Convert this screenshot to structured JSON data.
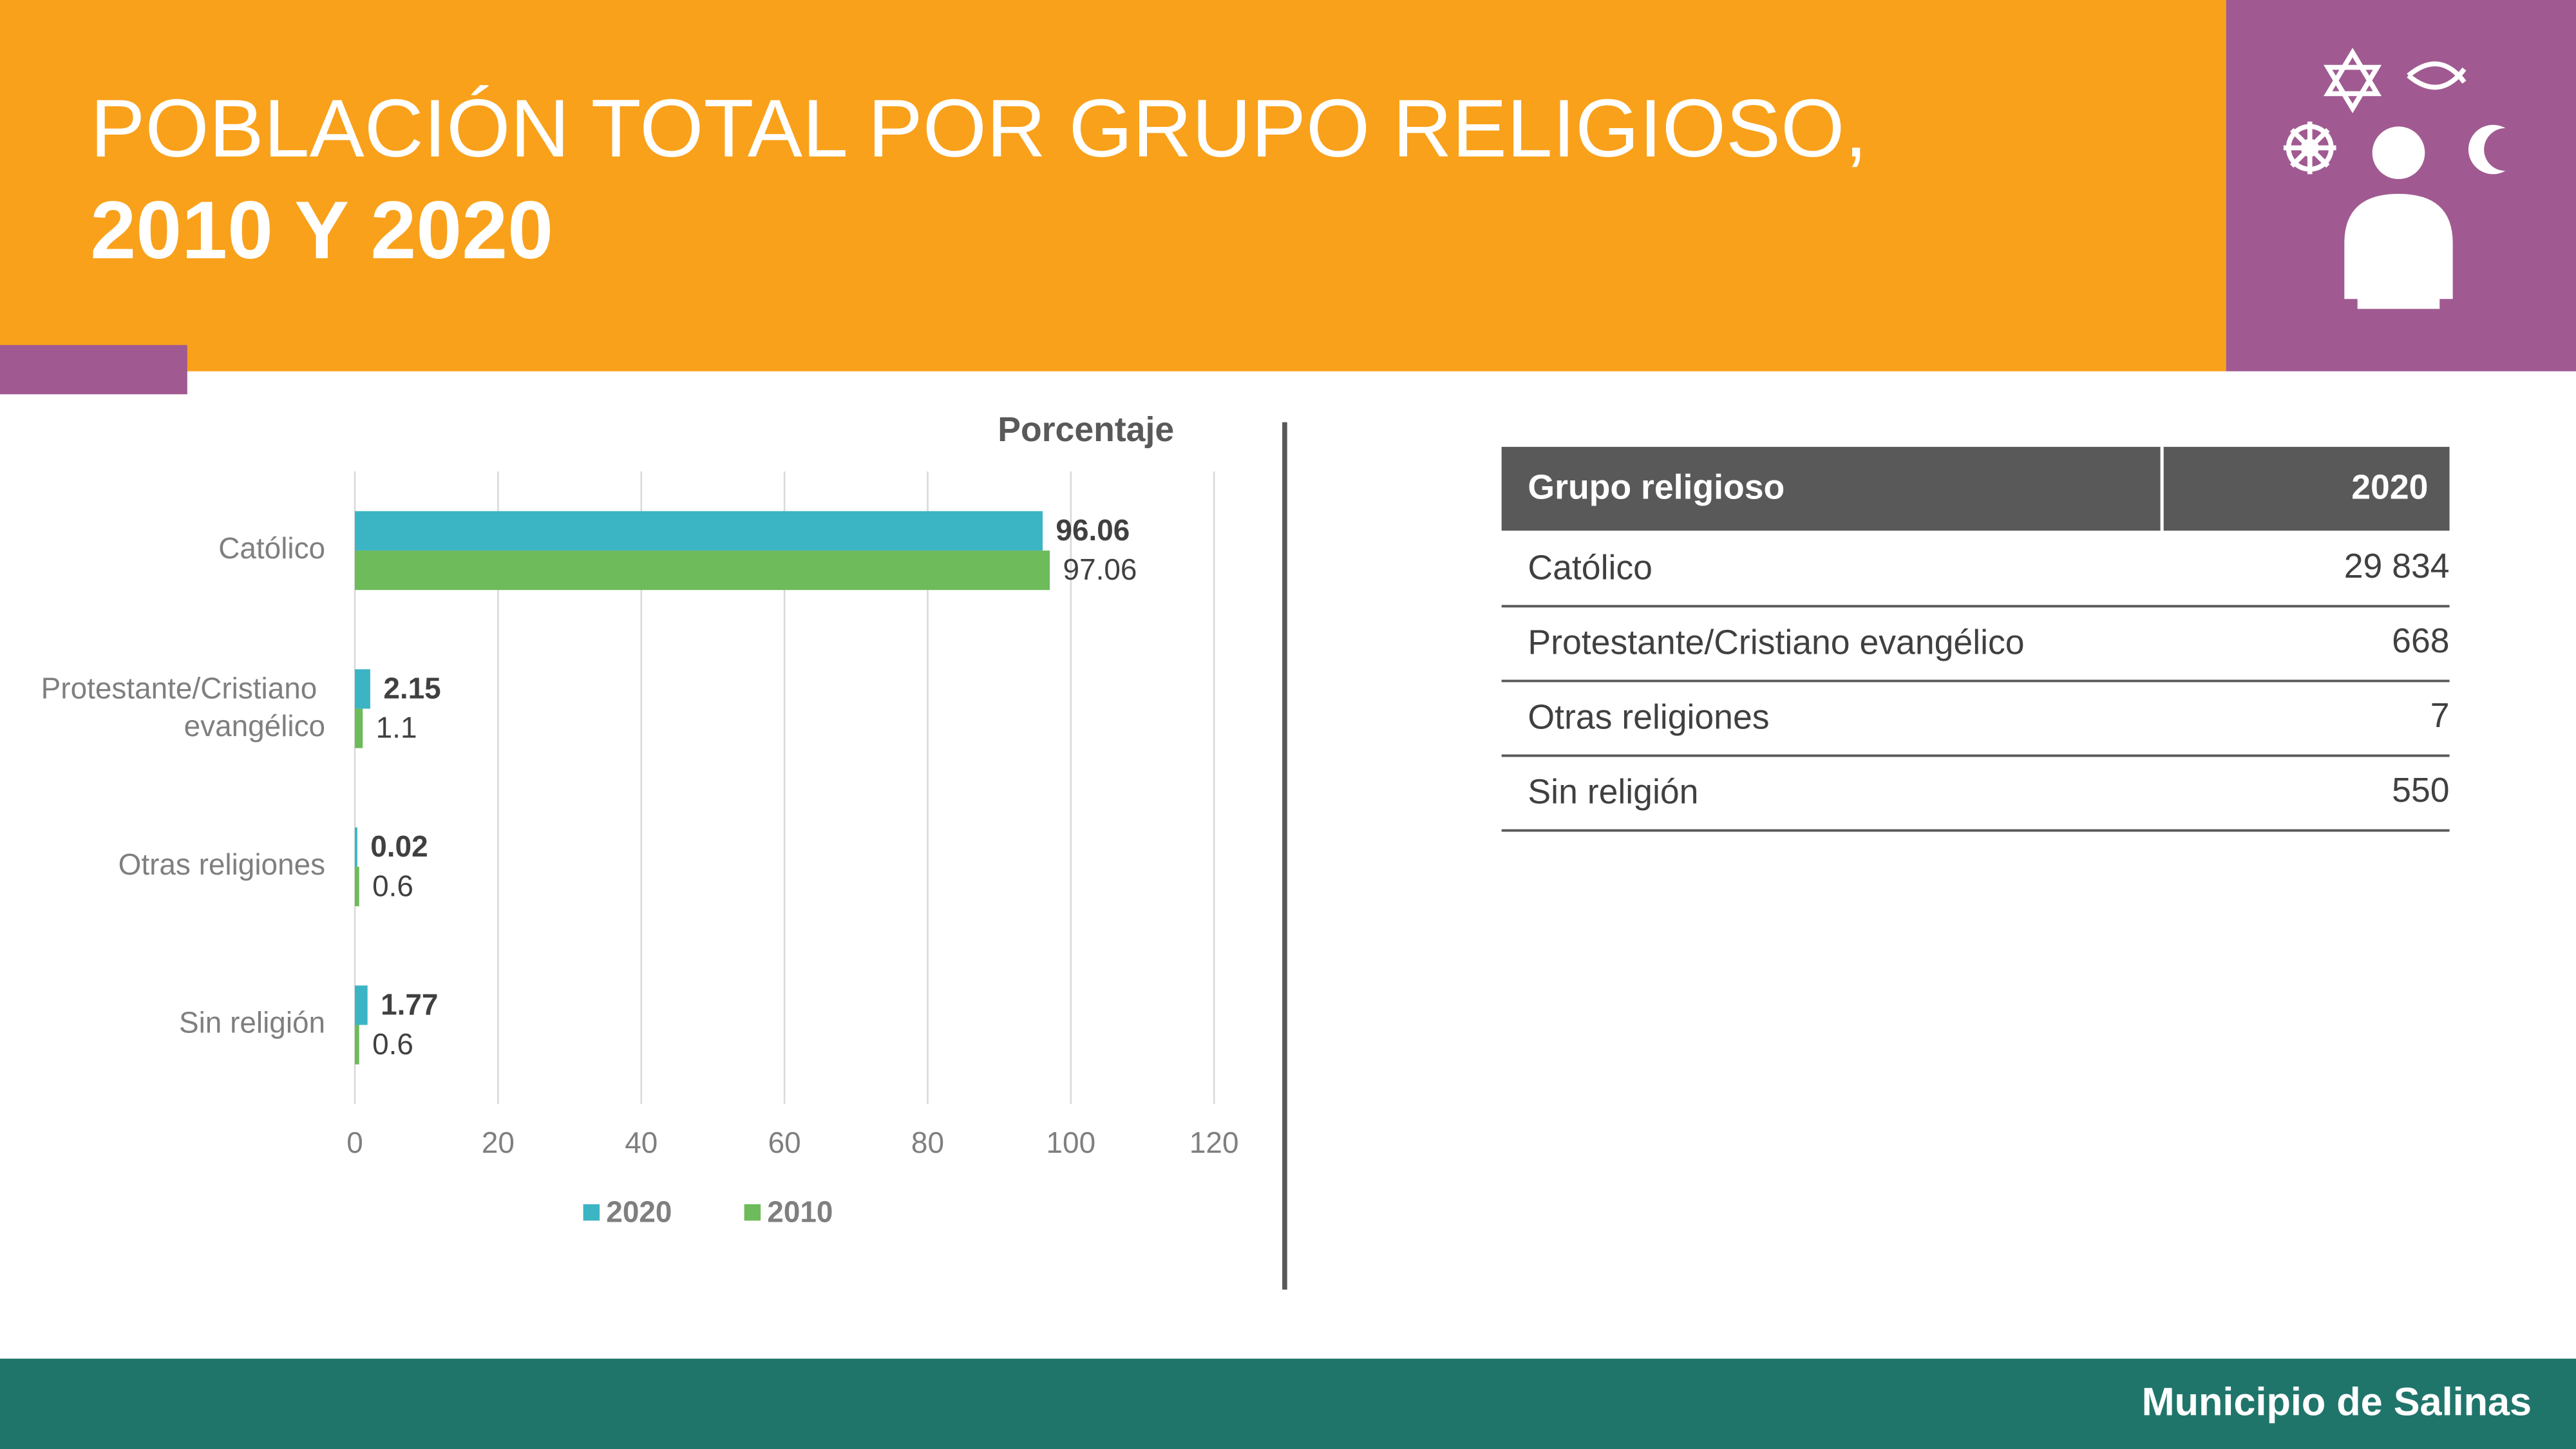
{
  "header": {
    "title_line1": "POBLACIÓN TOTAL POR GRUPO RELIGIOSO,",
    "title_line2": "2010 Y 2020"
  },
  "chart_data": {
    "type": "barh",
    "x_label": "Porcentaje",
    "categories": [
      "Católico",
      "Protestante/Cristiano evangélico",
      "Otras religiones",
      "Sin religión"
    ],
    "series": [
      {
        "name": "2020",
        "color": "#3bb5c4",
        "values": [
          96.06,
          2.15,
          0.02,
          1.77
        ]
      },
      {
        "name": "2010",
        "color": "#6dbb5a",
        "values": [
          97.06,
          1.1,
          0.6,
          0.6
        ]
      }
    ],
    "xlim": [
      0,
      120
    ],
    "xticks": [
      0,
      20,
      40,
      60,
      80,
      100,
      120
    ],
    "grid": true,
    "legend": "bottom"
  },
  "table": {
    "header": [
      "Grupo religioso",
      "2020"
    ],
    "rows": [
      [
        "Católico",
        "29 834"
      ],
      [
        "Protestante/Cristiano evangélico",
        "668"
      ],
      [
        "Otras religiones",
        "7"
      ],
      [
        "Sin religión",
        "550"
      ]
    ]
  },
  "footer": {
    "text": "Municipio de Salinas"
  }
}
